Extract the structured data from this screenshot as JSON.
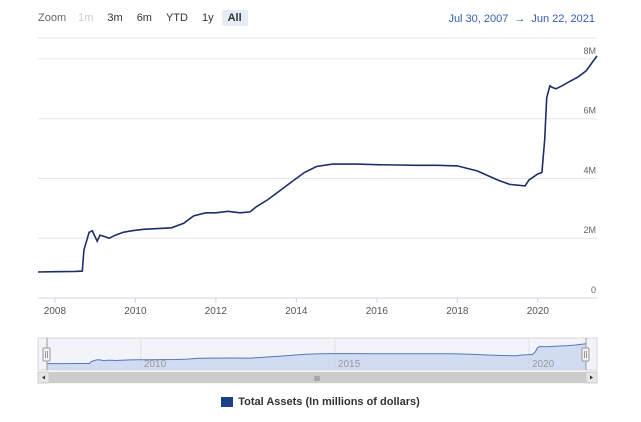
{
  "range_selector": {
    "zoom_label": "Zoom",
    "buttons": [
      {
        "label": "1m",
        "state": "disabled"
      },
      {
        "label": "3m",
        "state": "normal"
      },
      {
        "label": "6m",
        "state": "normal"
      },
      {
        "label": "YTD",
        "state": "normal"
      },
      {
        "label": "1y",
        "state": "normal"
      },
      {
        "label": "All",
        "state": "active"
      }
    ]
  },
  "date_range": {
    "from": "Jul 30, 2007",
    "arrow": "→",
    "to": "Jun 22, 2021"
  },
  "colors": {
    "series": "#1c2f66",
    "navigator_fill": "#c6d3ee",
    "navigator_line": "#5577bb",
    "grid": "#e6e6e6",
    "accent_text": "#335cad",
    "legend_swatch": "#1c3f8a"
  },
  "navigator": {
    "tick_labels": [
      "2010",
      "2015",
      "2020"
    ],
    "scrollbar_grip": "III"
  },
  "chart_data": {
    "type": "line",
    "title": "",
    "xlabel": "",
    "ylabel": "",
    "xlim": [
      2007.58,
      2021.47
    ],
    "ylim": [
      0,
      8.7
    ],
    "x_ticks": [
      2008,
      2010,
      2012,
      2014,
      2016,
      2018,
      2020
    ],
    "x_tick_labels": [
      "2008",
      "2010",
      "2012",
      "2014",
      "2016",
      "2018",
      "2020"
    ],
    "y_ticks": [
      0,
      2,
      4,
      6,
      8
    ],
    "y_tick_labels": [
      "0",
      "2M",
      "4M",
      "6M",
      "8M"
    ],
    "grid": true,
    "legend": "bottom",
    "series": [
      {
        "name": "Total Assets (In millions of dollars)",
        "x": [
          2007.58,
          2008.0,
          2008.5,
          2008.68,
          2008.72,
          2008.85,
          2008.93,
          2009.05,
          2009.12,
          2009.25,
          2009.35,
          2009.5,
          2009.7,
          2009.9,
          2010.2,
          2010.5,
          2010.9,
          2011.2,
          2011.45,
          2011.75,
          2012.0,
          2012.3,
          2012.6,
          2012.85,
          2013.0,
          2013.3,
          2013.6,
          2013.9,
          2014.2,
          2014.5,
          2014.9,
          2015.5,
          2016.0,
          2016.5,
          2017.0,
          2017.5,
          2018.0,
          2018.5,
          2019.0,
          2019.3,
          2019.68,
          2019.78,
          2020.0,
          2020.1,
          2020.17,
          2020.22,
          2020.3,
          2020.35,
          2020.45,
          2020.6,
          2020.8,
          2021.0,
          2021.2,
          2021.47
        ],
        "values": [
          0.87,
          0.88,
          0.89,
          0.9,
          1.6,
          2.2,
          2.25,
          1.9,
          2.1,
          2.05,
          2.0,
          2.1,
          2.2,
          2.25,
          2.3,
          2.32,
          2.35,
          2.5,
          2.75,
          2.85,
          2.85,
          2.9,
          2.85,
          2.88,
          3.05,
          3.3,
          3.6,
          3.9,
          4.2,
          4.4,
          4.48,
          4.48,
          4.46,
          4.45,
          4.44,
          4.44,
          4.42,
          4.25,
          3.95,
          3.8,
          3.75,
          3.95,
          4.15,
          4.2,
          5.3,
          6.7,
          7.1,
          7.05,
          7.0,
          7.1,
          7.25,
          7.4,
          7.6,
          8.1
        ]
      }
    ]
  }
}
